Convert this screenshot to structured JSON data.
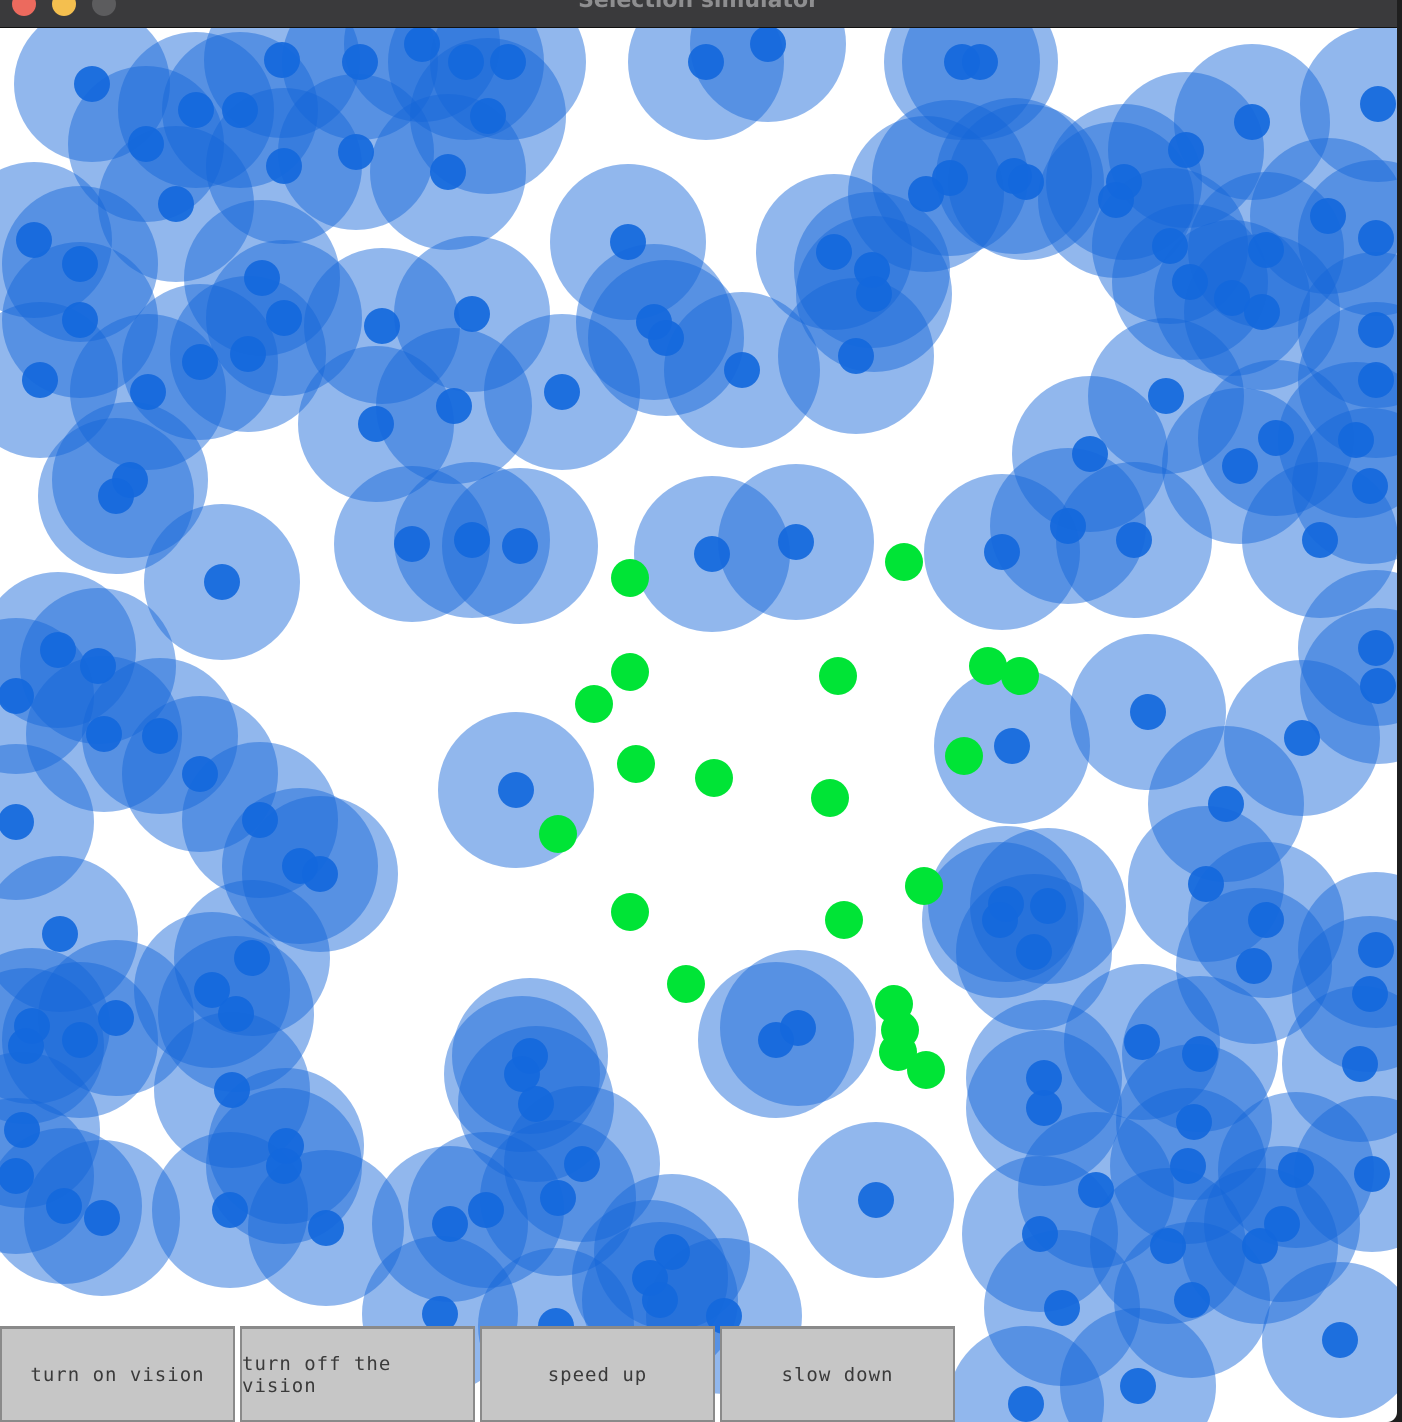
{
  "window": {
    "title": "Selection simulator"
  },
  "colors": {
    "vision_ring": "#1565d8",
    "predator": "#1368dc",
    "prey": "#00e436",
    "button_bg": "#c6c6c6"
  },
  "buttons": [
    {
      "label": "turn on vision"
    },
    {
      "label": "turn off the vision"
    },
    {
      "label": "speed up"
    },
    {
      "label": "slow down"
    }
  ]
}
